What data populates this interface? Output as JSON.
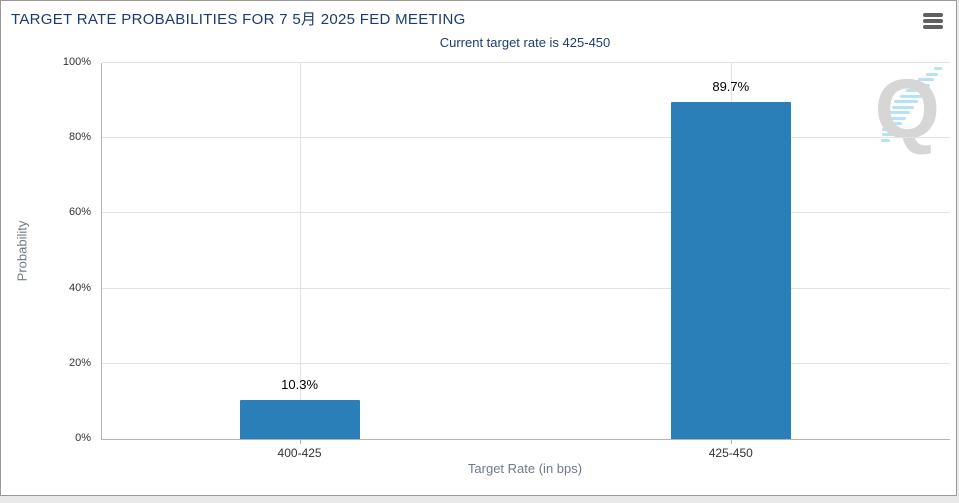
{
  "header": {
    "menu_icon": "hamburger-icon"
  },
  "watermark": {
    "letter": "Q",
    "name": "quikstrike-q-logo"
  },
  "colors": {
    "bar": "#2b7fb8",
    "title_text": "#1c3c6e",
    "axis_title_text": "#6d7a86",
    "tick_label_text": "#333333",
    "gridline": "#e2e2e2",
    "axis_line": "#b3b3b3",
    "watermark_letter": "#d6d6d6",
    "watermark_streak": "#aadcf2",
    "card_border": "#999999",
    "page_background": "#e9e9e9"
  },
  "chart_data": {
    "type": "bar",
    "title": "TARGET RATE PROBABILITIES FOR 7 5月 2025 FED MEETING",
    "subtitle": "Current target rate is 425-450",
    "categories": [
      "400-425",
      "425-450"
    ],
    "values": [
      10.3,
      89.7
    ],
    "value_labels": [
      "10.3%",
      "89.7%"
    ],
    "xlabel": "Target Rate (in bps)",
    "ylabel": "Probability",
    "ylim": [
      0,
      100
    ],
    "ytick_labels": [
      "0%",
      "20%",
      "40%",
      "60%",
      "80%",
      "100%"
    ],
    "grid": true,
    "legend": false,
    "bar_color": "#2b7fb8"
  }
}
